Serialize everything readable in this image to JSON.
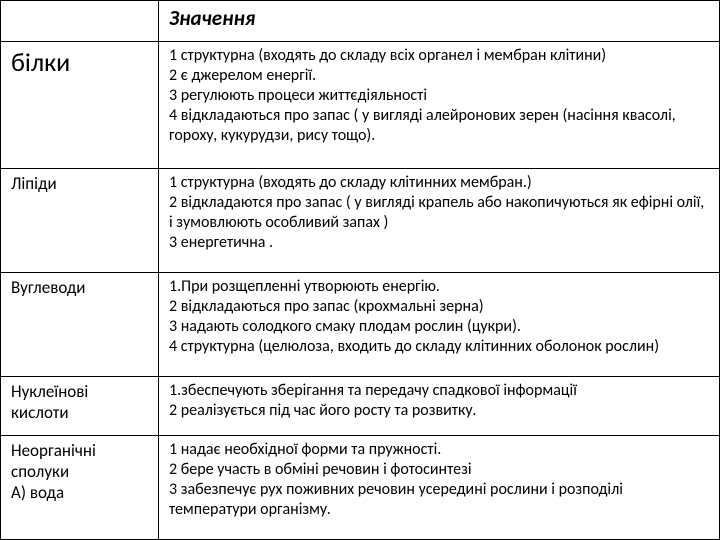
{
  "header": {
    "title": "Значення"
  },
  "rows": [
    {
      "label": "білки",
      "labelClass": "row-label-big",
      "content": "1 структурна (входять до складу всіх органел і мембран клітини)\n2    є джерелом енергії.\n3    регулюють процеси життєдіяльності\n4    відкладаються про запас ( у вигляді  алейронових зерен (насіння квасолі, гороху, кукурудзи, рису тощо)."
    },
    {
      "label": "Ліпіди",
      "labelClass": "row-label",
      "content": "1 структурна (входять до складу клітинних мембран.)\n2 відкладаются про запас  ( у вигляді крапель або накопичуються  як ефірні олії, і зумовлюють особливий запах )\n3 енергетична ."
    },
    {
      "label": "Вуглеводи",
      "labelClass": "row-label",
      "content": "1.При  розщепленні утворюють енергію.\n2 відкладаються про запас (крохмальні зерна)\n3 надають солодкого смаку плодам рослин (цукри).\n4 структурна (целюлоза, входить до складу клітинних оболонок рослин)"
    },
    {
      "label": "Нуклеїнові кислоти",
      "labelClass": "row-label",
      "content": "1.збеспечують зберігання  та передачу спадкової інформації\n2 реалізується під час його росту та розвитку."
    },
    {
      "label": "Неорганічні сполуки\nА) вода",
      "labelClass": "row-label",
      "content": "1 надає необхідної форми та пружності.\n2    бере участь в обміні речовин і фотосинтезі\n3    забезпечує рух поживних речовин усередині рослини і розподілі температури організму."
    }
  ]
}
